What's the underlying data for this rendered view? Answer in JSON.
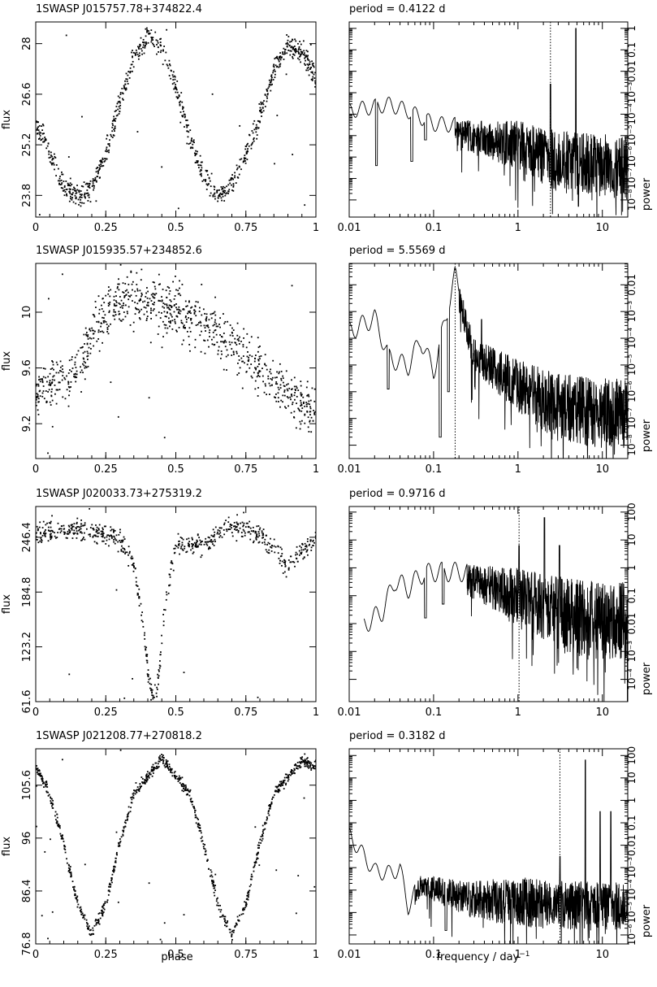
{
  "figure": {
    "xlabel_left": "phase",
    "xlabel_right_main": "frequency / day",
    "xlabel_right_sup": "−1",
    "ylabel_left": "flux",
    "ylabel_right": "power"
  },
  "chart_data": [
    {
      "type": "scatter",
      "title": "1SWASP  J015757.78+374822.4",
      "ylabel": "flux",
      "xlim": [
        0,
        1
      ],
      "ylim": [
        23.2,
        28.6
      ],
      "xticks": [
        "0",
        "0.25",
        "0.5",
        "0.75",
        "1"
      ],
      "xtick_values": [
        0,
        0.25,
        0.5,
        0.75,
        1
      ],
      "yticks": [
        "23.8",
        "25.2",
        "26.6",
        "28"
      ],
      "ytick_values": [
        23.8,
        25.2,
        26.6,
        28.0
      ],
      "curve_shape": "sine",
      "points": [
        [
          0.0,
          25.8
        ],
        [
          0.05,
          25.0
        ],
        [
          0.1,
          24.0
        ],
        [
          0.15,
          23.75
        ],
        [
          0.2,
          24.0
        ],
        [
          0.25,
          25.0
        ],
        [
          0.3,
          26.3
        ],
        [
          0.35,
          27.6
        ],
        [
          0.4,
          28.2
        ],
        [
          0.45,
          27.9
        ],
        [
          0.5,
          26.8
        ],
        [
          0.55,
          25.4
        ],
        [
          0.6,
          24.3
        ],
        [
          0.65,
          23.75
        ],
        [
          0.7,
          24.1
        ],
        [
          0.75,
          24.9
        ],
        [
          0.8,
          26.0
        ],
        [
          0.85,
          27.3
        ],
        [
          0.9,
          28.0
        ],
        [
          0.95,
          27.8
        ],
        [
          1.0,
          27.0
        ]
      ],
      "npoints": 900,
      "scatter": 0.3
    },
    {
      "type": "line",
      "title": "period =    0.4122  d",
      "xlabel": "",
      "ylabel": "power",
      "xscale": "log",
      "xlim": [
        0.01,
        20
      ],
      "yscale": "log",
      "ylim": [
        -8.8,
        0.3
      ],
      "xticks": [
        "0.01",
        "0.1",
        "1",
        "10"
      ],
      "xtick_values": [
        0.01,
        0.1,
        1,
        10
      ],
      "yticks": [
        "10⁻⁸",
        "10⁻⁷",
        "10⁻⁶",
        "10⁻⁵",
        "10⁻⁴",
        "10⁻³",
        "0.01",
        "0.1",
        "1"
      ],
      "ytick_values": [
        -8,
        -7,
        -6,
        -5,
        -4,
        -3,
        -2,
        -1,
        0
      ],
      "period_marker": 2.426,
      "envelope": [
        [
          0.01,
          -3.6
        ],
        [
          0.02,
          -3.4
        ],
        [
          0.03,
          -3.3
        ],
        [
          0.05,
          -3.6
        ],
        [
          0.1,
          -4.2
        ],
        [
          0.3,
          -4.3
        ],
        [
          1,
          -4.3
        ],
        [
          3,
          -4.7
        ],
        [
          10,
          -4.9
        ],
        [
          20,
          -5.0
        ]
      ],
      "noise_start": 0.18,
      "noise_depth": 3.0,
      "dips": [
        [
          0.021,
          -6.4
        ],
        [
          0.055,
          -6.2
        ],
        [
          0.08,
          -5.2
        ]
      ],
      "spikes": [
        [
          2.426,
          -2.6
        ],
        [
          4.85,
          0.0
        ],
        [
          5.2,
          -8.3
        ]
      ]
    },
    {
      "type": "scatter",
      "title": "1SWASP  J015935.57+234852.6",
      "ylabel": "flux",
      "xlim": [
        0,
        1
      ],
      "ylim": [
        8.95,
        10.35
      ],
      "xticks": [
        "0",
        "0.25",
        "0.5",
        "0.75",
        "1"
      ],
      "xtick_values": [
        0,
        0.25,
        0.5,
        0.75,
        1
      ],
      "yticks": [
        "9.2",
        "9.6",
        "10"
      ],
      "ytick_values": [
        9.2,
        9.6,
        10.0
      ],
      "curve_shape": "step",
      "points": [
        [
          0.0,
          9.4
        ],
        [
          0.05,
          9.5
        ],
        [
          0.1,
          9.5
        ],
        [
          0.17,
          9.65
        ],
        [
          0.2,
          9.85
        ],
        [
          0.25,
          10.0
        ],
        [
          0.35,
          10.1
        ],
        [
          0.45,
          10.05
        ],
        [
          0.55,
          9.95
        ],
        [
          0.65,
          9.85
        ],
        [
          0.75,
          9.7
        ],
        [
          0.85,
          9.5
        ],
        [
          0.95,
          9.35
        ],
        [
          1.0,
          9.3
        ]
      ],
      "npoints": 900,
      "scatter": 0.18
    },
    {
      "type": "line",
      "title": "period =    5.5569  d",
      "xlabel": "",
      "ylabel": "power",
      "xscale": "log",
      "xlim": [
        0.01,
        20
      ],
      "yscale": "log",
      "ylim": [
        -8.5,
        -1.2
      ],
      "xticks": [
        "0.01",
        "0.1",
        "1",
        "10"
      ],
      "xtick_values": [
        0.01,
        0.1,
        1,
        10
      ],
      "yticks": [
        "10⁻⁸",
        "10⁻⁷",
        "10⁻⁶",
        "10⁻⁵",
        "10⁻⁴",
        "10⁻³",
        "0.01"
      ],
      "ytick_values": [
        -8,
        -7,
        -6,
        -5,
        -4,
        -3,
        -2
      ],
      "period_marker": 0.18,
      "envelope": [
        [
          0.01,
          -3.5
        ],
        [
          0.02,
          -3.0
        ],
        [
          0.03,
          -4.5
        ],
        [
          0.05,
          -4.8
        ],
        [
          0.07,
          -3.8
        ],
        [
          0.1,
          -5.0
        ],
        [
          0.18,
          -1.4
        ],
        [
          0.3,
          -4.0
        ],
        [
          1,
          -4.8
        ],
        [
          3,
          -5.3
        ],
        [
          10,
          -5.5
        ],
        [
          20,
          -5.5
        ]
      ],
      "noise_start": 0.2,
      "noise_depth": 2.6,
      "dips": [
        [
          0.029,
          -5.9
        ],
        [
          0.12,
          -7.7
        ],
        [
          0.15,
          -6.0
        ]
      ],
      "spikes": [
        [
          0.18,
          -1.4
        ],
        [
          0.37,
          -3.3
        ]
      ]
    },
    {
      "type": "scatter",
      "title": "1SWASP  J020033.73+275319.2",
      "ylabel": "flux",
      "xlim": [
        0,
        1
      ],
      "ylim": [
        61.6,
        281
      ],
      "xticks": [
        "0",
        "0.25",
        "0.5",
        "0.75",
        "1"
      ],
      "xtick_values": [
        0,
        0.25,
        0.5,
        0.75,
        1
      ],
      "yticks": [
        "61.6",
        "123.2",
        "184.8",
        "246.4"
      ],
      "ytick_values": [
        61.6,
        123.2,
        184.8,
        246.4
      ],
      "curve_shape": "eclipse",
      "points": [
        [
          0.0,
          250
        ],
        [
          0.1,
          255
        ],
        [
          0.2,
          253
        ],
        [
          0.3,
          245
        ],
        [
          0.35,
          215
        ],
        [
          0.38,
          160
        ],
        [
          0.4,
          100
        ],
        [
          0.42,
          60
        ],
        [
          0.44,
          95
        ],
        [
          0.46,
          165
        ],
        [
          0.5,
          238
        ],
        [
          0.6,
          240
        ],
        [
          0.7,
          260
        ],
        [
          0.8,
          250
        ],
        [
          0.9,
          215
        ],
        [
          1.0,
          245
        ]
      ],
      "npoints": 700,
      "scatter": 12
    },
    {
      "type": "line",
      "title": "period =    0.9716  d",
      "xlabel": "",
      "ylabel": "power",
      "xscale": "log",
      "xlim": [
        0.01,
        20
      ],
      "yscale": "log",
      "ylim": [
        -4.8,
        2.2
      ],
      "xticks": [
        "0.01",
        "0.1",
        "1",
        "10"
      ],
      "xtick_values": [
        0.01,
        0.1,
        1,
        10
      ],
      "yticks": [
        "10⁻⁴",
        "10⁻³",
        "0.01",
        "0.1",
        "1",
        "10",
        "100"
      ],
      "ytick_values": [
        -4,
        -3,
        -2,
        -1,
        0,
        1,
        2
      ],
      "period_marker": 1.03,
      "envelope": [
        [
          0.015,
          -1.8
        ],
        [
          0.025,
          -1.3
        ],
        [
          0.035,
          -0.2
        ],
        [
          0.05,
          -0.5
        ],
        [
          0.07,
          0.0
        ],
        [
          0.1,
          0.1
        ],
        [
          0.3,
          0.1
        ],
        [
          1,
          0.0
        ],
        [
          3,
          -0.3
        ],
        [
          10,
          -0.5
        ],
        [
          20,
          -0.5
        ]
      ],
      "noise_start": 0.25,
      "noise_depth": 2.8,
      "dips": [
        [
          0.08,
          -1.8
        ],
        [
          0.13,
          -1.3
        ]
      ],
      "spikes": [
        [
          1.03,
          0.8
        ],
        [
          2.06,
          1.8
        ],
        [
          3.1,
          0.8
        ]
      ]
    },
    {
      "type": "scatter",
      "title": "1SWASP  J021208.77+270818.2",
      "ylabel": "flux",
      "xlim": [
        0,
        1
      ],
      "ylim": [
        76.8,
        112.2
      ],
      "xticks": [
        "0",
        "0.25",
        "0.5",
        "0.75",
        "1"
      ],
      "xtick_values": [
        0,
        0.25,
        0.5,
        0.75,
        1
      ],
      "yticks": [
        "76.8",
        "86.4",
        "96",
        "105.6"
      ],
      "ytick_values": [
        76.8,
        86.4,
        96.0,
        105.6
      ],
      "curve_shape": "sine",
      "points": [
        [
          0.0,
          109
        ],
        [
          0.05,
          104
        ],
        [
          0.1,
          95
        ],
        [
          0.15,
          84
        ],
        [
          0.2,
          78.5
        ],
        [
          0.25,
          84
        ],
        [
          0.3,
          95
        ],
        [
          0.35,
          104
        ],
        [
          0.45,
          110.5
        ],
        [
          0.55,
          104
        ],
        [
          0.6,
          95
        ],
        [
          0.65,
          84
        ],
        [
          0.7,
          78.5
        ],
        [
          0.75,
          84
        ],
        [
          0.8,
          95
        ],
        [
          0.85,
          104
        ],
        [
          0.95,
          110
        ],
        [
          1.0,
          109
        ]
      ],
      "npoints": 900,
      "scatter": 1.0
    },
    {
      "type": "line",
      "title": "period =    0.3182  d",
      "xlabel": "frequency / day⁻¹",
      "ylabel": "power",
      "xscale": "log",
      "xlim": [
        0.01,
        20
      ],
      "yscale": "log",
      "ylim": [
        -6.4,
        2.3
      ],
      "xticks": [
        "0.01",
        "0.1",
        "1",
        "10"
      ],
      "xtick_values": [
        0.01,
        0.1,
        1,
        10
      ],
      "yticks": [
        "10⁻⁶",
        "10⁻⁵",
        "10⁻⁴",
        "10⁻³",
        "0.01",
        "0.1",
        "1",
        "10",
        "100"
      ],
      "ytick_values": [
        -6,
        -5,
        -4,
        -3,
        -2,
        -1,
        0,
        1,
        2
      ],
      "period_marker": 3.14,
      "envelope": [
        [
          0.01,
          -1.3
        ],
        [
          0.02,
          -2.9
        ],
        [
          0.03,
          -3.0
        ],
        [
          0.04,
          -2.8
        ],
        [
          0.05,
          -4.5
        ],
        [
          0.07,
          -3.3
        ],
        [
          0.1,
          -3.4
        ],
        [
          0.3,
          -3.6
        ],
        [
          1,
          -3.4
        ],
        [
          3,
          -3.6
        ],
        [
          10,
          -3.6
        ],
        [
          20,
          -3.6
        ]
      ],
      "noise_start": 0.06,
      "noise_depth": 2.2,
      "dips": [
        [
          0.05,
          -4.6
        ],
        [
          0.14,
          -5.8
        ]
      ],
      "spikes": [
        [
          3.14,
          -2.5
        ],
        [
          6.28,
          1.8
        ],
        [
          9.4,
          -0.5
        ],
        [
          12.6,
          -0.5
        ]
      ]
    }
  ]
}
